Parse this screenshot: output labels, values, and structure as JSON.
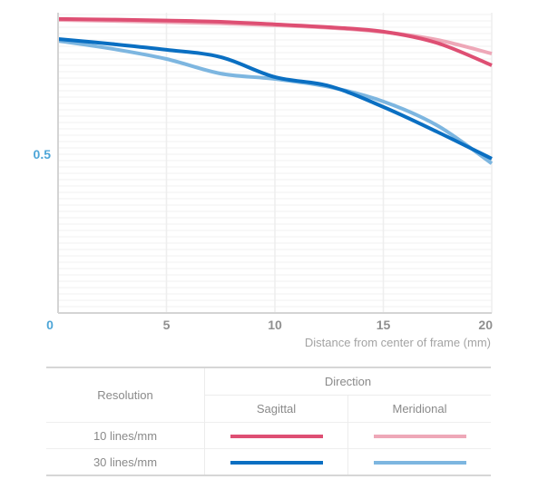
{
  "chart_data": {
    "type": "line",
    "title": "",
    "xlabel": "Distance from center of frame (mm)",
    "ylabel": "",
    "xlim": [
      0,
      20
    ],
    "ylim": [
      0,
      0.946
    ],
    "x_ticks": [
      "0",
      "5",
      "10",
      "15",
      "20"
    ],
    "x_tick_values": [
      0,
      5,
      10,
      15,
      20
    ],
    "y_ticks": [
      "0.5"
    ],
    "y_tick_values": [
      0.5
    ],
    "grid": true,
    "minor_grid_step": 0.02,
    "x": [
      0,
      2.5,
      5,
      7.5,
      10,
      12.5,
      15,
      17.5,
      20
    ],
    "series": [
      {
        "name": "10 lines/mm Sagittal",
        "color": "#de4f73",
        "values": [
          0.926,
          0.924,
          0.921,
          0.917,
          0.909,
          0.9,
          0.886,
          0.85,
          0.78
        ]
      },
      {
        "name": "10 lines/mm Meridional",
        "color": "#eea8b8",
        "values": [
          0.923,
          0.92,
          0.916,
          0.912,
          0.906,
          0.898,
          0.885,
          0.86,
          0.817
        ]
      },
      {
        "name": "30 lines/mm Sagittal",
        "color": "#0a6fc2",
        "values": [
          0.863,
          0.847,
          0.829,
          0.806,
          0.743,
          0.715,
          0.649,
          0.57,
          0.486
        ]
      },
      {
        "name": "30 lines/mm Meridional",
        "color": "#7db6e0",
        "values": [
          0.857,
          0.832,
          0.8,
          0.754,
          0.737,
          0.712,
          0.666,
          0.59,
          0.471
        ]
      }
    ],
    "legend": "bottom-table"
  },
  "legend_table": {
    "resolution_header": "Resolution",
    "direction_header": "Direction",
    "sagittal_header": "Sagittal",
    "meridional_header": "Meridional",
    "rows": [
      {
        "label": "10 lines/mm",
        "sagittal_color": "#de4f73",
        "meridional_color": "#eea8b8"
      },
      {
        "label": "30 lines/mm",
        "sagittal_color": "#0a6fc2",
        "meridional_color": "#7db6e0"
      }
    ]
  }
}
